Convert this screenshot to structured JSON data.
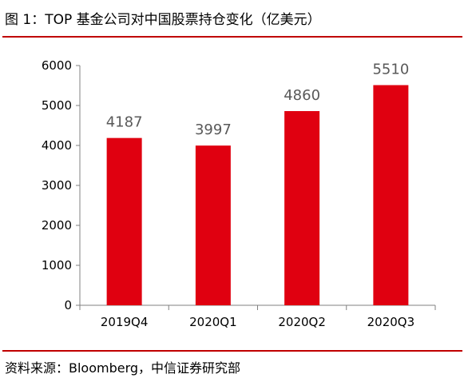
{
  "figure": {
    "title": "图 1：TOP 基金公司对中国股票持仓变化（亿美元）",
    "source": "资料来源：Bloomberg，中信证券研究部"
  },
  "colors": {
    "bar": "#e00010",
    "rule": "#c00000",
    "axis": "#808080",
    "value_label": "#595959"
  },
  "chart_data": {
    "type": "bar",
    "title": "",
    "xlabel": "",
    "ylabel": "",
    "categories": [
      "2019Q4",
      "2020Q1",
      "2020Q2",
      "2020Q3"
    ],
    "values": [
      4187,
      3997,
      4860,
      5510
    ],
    "value_labels": [
      "4187",
      "3997",
      "4860",
      "5510"
    ],
    "ylim": [
      0,
      6000
    ],
    "yticks": [
      0,
      1000,
      2000,
      3000,
      4000,
      5000,
      6000
    ],
    "ytick_labels": [
      "0",
      "1000",
      "2000",
      "3000",
      "4000",
      "5000",
      "6000"
    ],
    "grid": false,
    "legend": "none"
  }
}
